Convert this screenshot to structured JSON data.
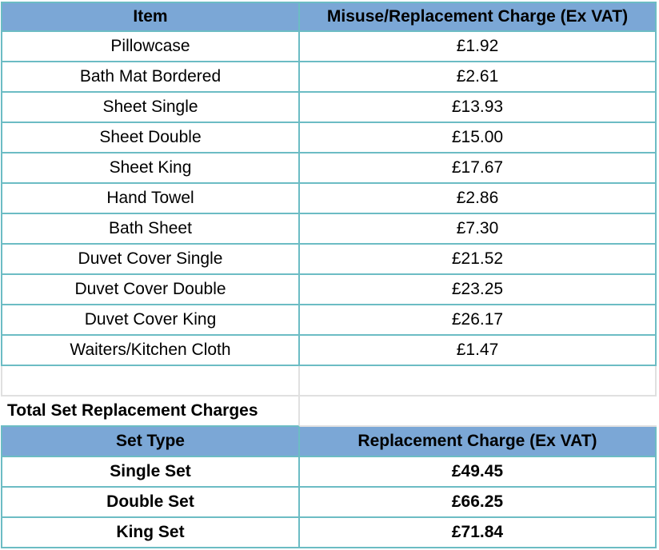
{
  "items_table": {
    "headers": [
      "Item",
      "Misuse/Replacement Charge (Ex VAT)"
    ],
    "rows": [
      {
        "item": "Pillowcase",
        "charge": "£1.92"
      },
      {
        "item": "Bath Mat Bordered",
        "charge": "£2.61"
      },
      {
        "item": "Sheet Single",
        "charge": "£13.93"
      },
      {
        "item": "Sheet Double",
        "charge": "£15.00"
      },
      {
        "item": "Sheet King",
        "charge": "£17.67"
      },
      {
        "item": "Hand Towel",
        "charge": "£2.86"
      },
      {
        "item": "Bath Sheet",
        "charge": "£7.30"
      },
      {
        "item": "Duvet Cover Single",
        "charge": "£21.52"
      },
      {
        "item": "Duvet Cover Double",
        "charge": "£23.25"
      },
      {
        "item": "Duvet Cover King",
        "charge": "£26.17"
      },
      {
        "item": "Waiters/Kitchen Cloth",
        "charge": "£1.47"
      }
    ]
  },
  "sets_table": {
    "title": "Total Set Replacement Charges",
    "headers": [
      "Set Type",
      "Replacement Charge (Ex VAT)"
    ],
    "rows": [
      {
        "set": "Single Set",
        "charge": "£49.45"
      },
      {
        "set": "Double Set",
        "charge": "£66.25"
      },
      {
        "set": "King Set",
        "charge": "£71.84"
      }
    ]
  },
  "colors": {
    "header_bg": "#7ba7d6",
    "border": "#6cbcc4"
  }
}
